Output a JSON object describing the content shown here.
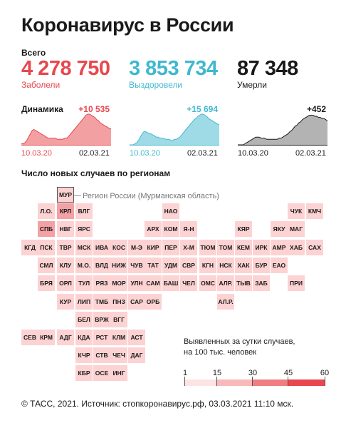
{
  "header": {
    "title": "Коронавирус в России"
  },
  "totals": {
    "label": "Всего",
    "items": [
      {
        "value": "4 278 750",
        "label": "Заболели",
        "color": "#e8474f"
      },
      {
        "value": "3 853 734",
        "label": "Выздоровели",
        "color": "#3fb8cf"
      },
      {
        "value": "87 348",
        "label": "Умерли",
        "color": "#1a1a1a"
      }
    ]
  },
  "dynamics": {
    "label": "Динамика",
    "charts": [
      {
        "delta": "+10 535",
        "color": "#e8474f",
        "fill": "#f2a0a2",
        "start": "10.03.20",
        "end": "02.03.21",
        "values": [
          1,
          1,
          2,
          4,
          7,
          10,
          13,
          14,
          13,
          12,
          11,
          10,
          9,
          8,
          7,
          6,
          6,
          6,
          6,
          6,
          5,
          5,
          5,
          5,
          6,
          6,
          7,
          9,
          11,
          13,
          15,
          17,
          19,
          21,
          23,
          25,
          27,
          28,
          28,
          27,
          26,
          25,
          23,
          22,
          20,
          19,
          18,
          17,
          16,
          15,
          15
        ]
      },
      {
        "delta": "+15 694",
        "color": "#3fb8cf",
        "fill": "#9fdbe6",
        "start": "10.03.20",
        "end": "02.03.21",
        "values": [
          0,
          0,
          0,
          1,
          2,
          4,
          7,
          10,
          12,
          12,
          11,
          10,
          10,
          9,
          8,
          7,
          7,
          6,
          6,
          6,
          5,
          5,
          5,
          4,
          4,
          5,
          5,
          6,
          7,
          9,
          11,
          13,
          15,
          17,
          19,
          21,
          23,
          24,
          26,
          27,
          28,
          28,
          27,
          26,
          24,
          23,
          22,
          21,
          20,
          19,
          18
        ]
      },
      {
        "delta": "+452",
        "color": "#1a1a1a",
        "fill": "#b3b3b3",
        "start": "10.03.20",
        "end": "02.03.21",
        "values": [
          0,
          0,
          0,
          0,
          1,
          2,
          3,
          4,
          5,
          6,
          7,
          7,
          7,
          6,
          6,
          6,
          5,
          5,
          5,
          5,
          5,
          5,
          5,
          6,
          6,
          7,
          8,
          9,
          10,
          12,
          13,
          15,
          17,
          18,
          20,
          21,
          23,
          24,
          25,
          26,
          27,
          27,
          27,
          26,
          26,
          25,
          25,
          24,
          24,
          23,
          22
        ]
      }
    ]
  },
  "map": {
    "title": "Число новых случаев по регионам",
    "callout": "Регион России (Мурманская область)",
    "regions": [
      {
        "code": "МУР",
        "level": 1
      },
      {
        "code": "Л.О.",
        "level": 1
      },
      {
        "code": "КРЛ",
        "level": 2
      },
      {
        "code": "ВЛГ",
        "level": 1
      },
      {
        "code": "НАО",
        "level": 1
      },
      {
        "code": "ЧУК",
        "level": 1
      },
      {
        "code": "КМЧ",
        "level": 1
      },
      {
        "code": "СПБ",
        "level": 2
      },
      {
        "code": "НВГ",
        "level": 1
      },
      {
        "code": "ЯРС",
        "level": 1
      },
      {
        "code": "АРХ",
        "level": 1
      },
      {
        "code": "КОМ",
        "level": 1
      },
      {
        "code": "Я-Н",
        "level": 1
      },
      {
        "code": "КЯР",
        "level": 1
      },
      {
        "code": "ЯКУ",
        "level": 1
      },
      {
        "code": "МАГ",
        "level": 1
      },
      {
        "code": "КГД",
        "level": 1
      },
      {
        "code": "ПСК",
        "level": 1
      },
      {
        "code": "ТВР",
        "level": 1
      },
      {
        "code": "МСК",
        "level": 1
      },
      {
        "code": "ИВА",
        "level": 1
      },
      {
        "code": "КОС",
        "level": 1
      },
      {
        "code": "М-Э",
        "level": 1
      },
      {
        "code": "КИР",
        "level": 1
      },
      {
        "code": "ПЕР",
        "level": 1
      },
      {
        "code": "Х-М",
        "level": 1
      },
      {
        "code": "ТЮМ",
        "level": 1
      },
      {
        "code": "ТОМ",
        "level": 1
      },
      {
        "code": "КЕМ",
        "level": 1
      },
      {
        "code": "ИРК",
        "level": 1
      },
      {
        "code": "АМР",
        "level": 1
      },
      {
        "code": "ХАБ",
        "level": 1
      },
      {
        "code": "САХ",
        "level": 1
      },
      {
        "code": "СМЛ",
        "level": 1
      },
      {
        "code": "КЛУ",
        "level": 1
      },
      {
        "code": "М.О.",
        "level": 1
      },
      {
        "code": "ВЛД",
        "level": 1
      },
      {
        "code": "НИЖ",
        "level": 1
      },
      {
        "code": "ЧУВ",
        "level": 1
      },
      {
        "code": "ТАТ",
        "level": 1
      },
      {
        "code": "УДМ",
        "level": 1
      },
      {
        "code": "СВР",
        "level": 1
      },
      {
        "code": "КГН",
        "level": 1
      },
      {
        "code": "НСК",
        "level": 1
      },
      {
        "code": "ХАК",
        "level": 1
      },
      {
        "code": "БУР",
        "level": 1
      },
      {
        "code": "ЕАО",
        "level": 1
      },
      {
        "code": "БРЯ",
        "level": 1
      },
      {
        "code": "ОРЛ",
        "level": 1
      },
      {
        "code": "ТУЛ",
        "level": 1
      },
      {
        "code": "РЯЗ",
        "level": 1
      },
      {
        "code": "МОР",
        "level": 1
      },
      {
        "code": "УЛН",
        "level": 1
      },
      {
        "code": "САМ",
        "level": 1
      },
      {
        "code": "БАШ",
        "level": 1
      },
      {
        "code": "ЧЕЛ",
        "level": 1
      },
      {
        "code": "ОМС",
        "level": 1
      },
      {
        "code": "АЛР.",
        "level": 1
      },
      {
        "code": "ТЫВ",
        "level": 1
      },
      {
        "code": "ЗАБ",
        "level": 1
      },
      {
        "code": "ПРИ",
        "level": 1
      },
      {
        "code": "КУР",
        "level": 1
      },
      {
        "code": "ЛИП",
        "level": 1
      },
      {
        "code": "ТМБ",
        "level": 1
      },
      {
        "code": "ПНЗ",
        "level": 1
      },
      {
        "code": "САР",
        "level": 1
      },
      {
        "code": "ОРБ",
        "level": 1
      },
      {
        "code": "АЛ.Р.",
        "level": 1
      },
      {
        "code": "БЕЛ",
        "level": 1
      },
      {
        "code": "ВРЖ",
        "level": 1
      },
      {
        "code": "ВГГ",
        "level": 1
      },
      {
        "code": "СЕВ",
        "level": 1
      },
      {
        "code": "КРМ",
        "level": 1
      },
      {
        "code": "АДГ",
        "level": 1
      },
      {
        "code": "КДА",
        "level": 1
      },
      {
        "code": "РСТ",
        "level": 1
      },
      {
        "code": "КЛМ",
        "level": 1
      },
      {
        "code": "АСТ",
        "level": 1
      },
      {
        "code": "КЧР",
        "level": 1
      },
      {
        "code": "СТВ",
        "level": 1
      },
      {
        "code": "ЧЕЧ",
        "level": 1
      },
      {
        "code": "ДАГ",
        "level": 1
      },
      {
        "code": "КБР",
        "level": 1
      },
      {
        "code": "ОСЕ",
        "level": 1
      },
      {
        "code": "ИНГ",
        "level": 1
      }
    ]
  },
  "legend": {
    "title_line1": "Выявленных за сутки случаев,",
    "title_line2": "на 100 тыс. человек",
    "ticks": [
      "1",
      "15",
      "30",
      "45",
      "60"
    ],
    "colors": [
      "#fde3e3",
      "#f9b8b9",
      "#f07e81",
      "#e8474f"
    ]
  },
  "footer": {
    "text": "© ТАСС, 2021. Источник: стопкоронавирус.рф, 03.03.2021 11:10 мск."
  }
}
